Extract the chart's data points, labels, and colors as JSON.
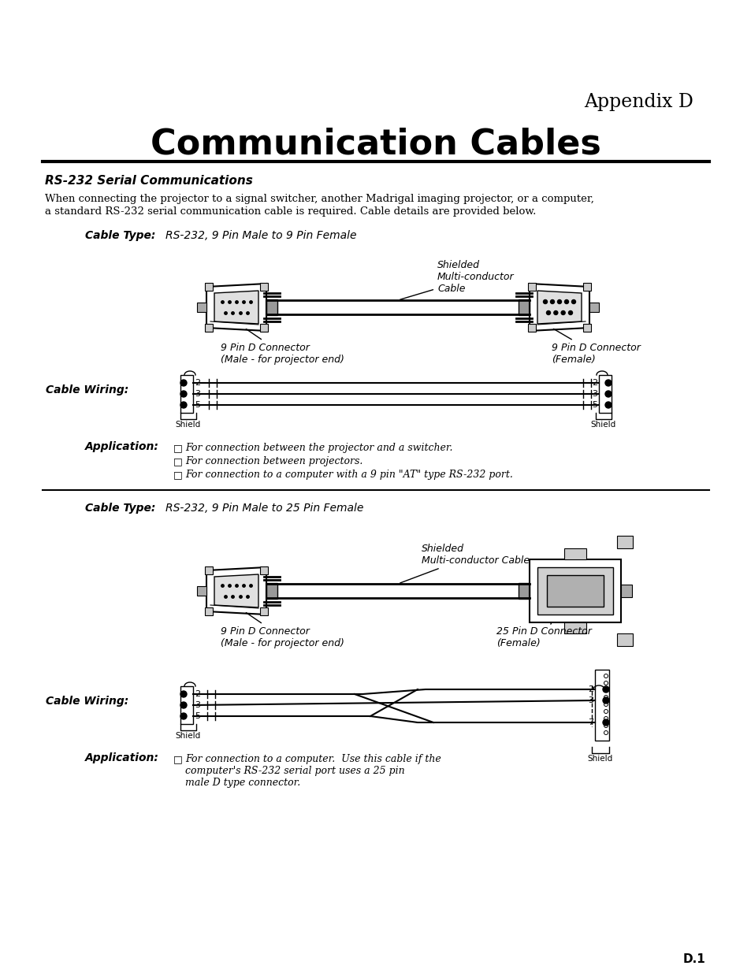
{
  "appendix_label": "Appendix D",
  "title": "Communication Cables",
  "section_title": "RS-232 Serial Communications",
  "intro_line1": "When connecting the projector to a signal switcher, another Madrigal imaging projector, or a computer,",
  "intro_line2": "a standard RS-232 serial communication cable is required. Cable details are provided below.",
  "cable1_type_label": "Cable Type:",
  "cable1_type_value": "RS-232, 9 Pin Male to 9 Pin Female",
  "cable1_shielded_label": "Shielded\nMulti-conductor\nCable",
  "cable1_left_label": "9 Pin D Connector\n(Male - for projector end)",
  "cable1_right_label": "9 Pin D Connector\n(Female)",
  "cable1_wiring_label": "Cable Wiring:",
  "cable1_app_label": "Application:",
  "cable1_app_items": [
    "For connection between the projector and a switcher.",
    "For connection between projectors.",
    "For connection to a computer with a 9 pin \"AT\" type RS-232 port."
  ],
  "cable2_type_label": "Cable Type:",
  "cable2_type_value": "RS-232, 9 Pin Male to 25 Pin Female",
  "cable2_shielded_label": "Shielded\nMulti-conductor Cable",
  "cable2_left_label": "9 Pin D Connector\n(Male - for projector end)",
  "cable2_right_label": "25 Pin D Connector\n(Female)",
  "cable2_wiring_label": "Cable Wiring:",
  "cable2_app_label": "Application:",
  "cable2_app_text": "For connection to a computer.  Use this cable if the\ncomputer's RS-232 serial port uses a 25 pin\nmale D type connector.",
  "page_num": "D.1",
  "bg_color": "#ffffff"
}
